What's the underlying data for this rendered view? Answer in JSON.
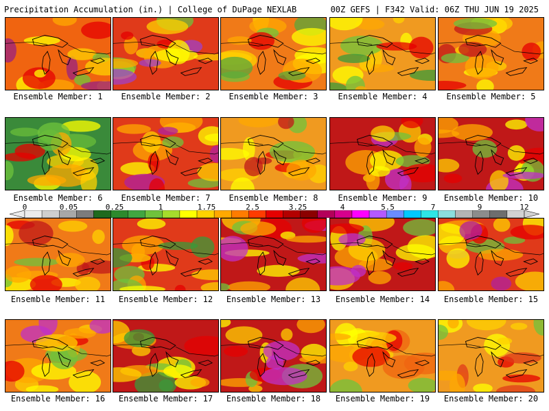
{
  "header": {
    "left_title": "Precipitation Accumulation (in.) | College of DuPage NEXLAB",
    "right_title": "00Z GEFS | F342 Valid: 06Z THU JUN 19 2025"
  },
  "legend": {
    "tick_labels": [
      "0",
      "0.05",
      "0.25",
      "1",
      "1.75",
      "2.5",
      "3.25",
      "4",
      "5.5",
      "7",
      "9",
      "12"
    ],
    "colors": [
      "#ececec",
      "#cfcfcf",
      "#a8a8a8",
      "#7c7c7c",
      "#1e6a1e",
      "#2d8a2d",
      "#41a641",
      "#6fc33c",
      "#a6dc2c",
      "#ffff00",
      "#ffd200",
      "#ffa800",
      "#ff7c00",
      "#ff3c00",
      "#e60000",
      "#b40000",
      "#8c0000",
      "#b4005a",
      "#d7008c",
      "#ff00ff",
      "#b45aff",
      "#6a8cff",
      "#00c8ff",
      "#2ee6e6",
      "#8cdede",
      "#b4b4b4",
      "#8c8c8c",
      "#6e6e6e",
      "#d2d2d2"
    ]
  },
  "panels": [
    {
      "label": "Ensemble Member: 1",
      "dominant": "#f06410",
      "accent": "#9a2080"
    },
    {
      "label": "Ensemble Member: 2",
      "dominant": "#e03a1a",
      "accent": "#a040c8"
    },
    {
      "label": "Ensemble Member: 3",
      "dominant": "#f07a18",
      "accent": "#5aa83a"
    },
    {
      "label": "Ensemble Member: 4",
      "dominant": "#f09a20",
      "accent": "#3a9a3a"
    },
    {
      "label": "Ensemble Member: 5",
      "dominant": "#f07a18",
      "accent": "#c01818"
    },
    {
      "label": "Ensemble Member: 6",
      "dominant": "#3a8a3a",
      "accent": "#6abc3a"
    },
    {
      "label": "Ensemble Member: 7",
      "dominant": "#e03a1a",
      "accent": "#b020a0"
    },
    {
      "label": "Ensemble Member: 8",
      "dominant": "#f09a20",
      "accent": "#c01818"
    },
    {
      "label": "Ensemble Member: 9",
      "dominant": "#c01818",
      "accent": "#c030c8"
    },
    {
      "label": "Ensemble Member: 10",
      "dominant": "#c01818",
      "accent": "#c030c8"
    },
    {
      "label": "Ensemble Member: 11",
      "dominant": "#f07a18",
      "accent": "#c01818"
    },
    {
      "label": "Ensemble Member: 12",
      "dominant": "#e03a1a",
      "accent": "#3a9a3a"
    },
    {
      "label": "Ensemble Member: 13",
      "dominant": "#c01818",
      "accent": "#c030c8"
    },
    {
      "label": "Ensemble Member: 14",
      "dominant": "#c01818",
      "accent": "#c030c8"
    },
    {
      "label": "Ensemble Member: 15",
      "dominant": "#e03a1a",
      "accent": "#b020a0"
    },
    {
      "label": "Ensemble Member: 16",
      "dominant": "#f07a18",
      "accent": "#c030c8"
    },
    {
      "label": "Ensemble Member: 17",
      "dominant": "#c01818",
      "accent": "#3a9a3a"
    },
    {
      "label": "Ensemble Member: 18",
      "dominant": "#c01818",
      "accent": "#c030c8"
    },
    {
      "label": "Ensemble Member: 19",
      "dominant": "#f09a20",
      "accent": "#f06410"
    },
    {
      "label": "Ensemble Member: 20",
      "dominant": "#f09a20",
      "accent": "#e03a1a"
    }
  ]
}
